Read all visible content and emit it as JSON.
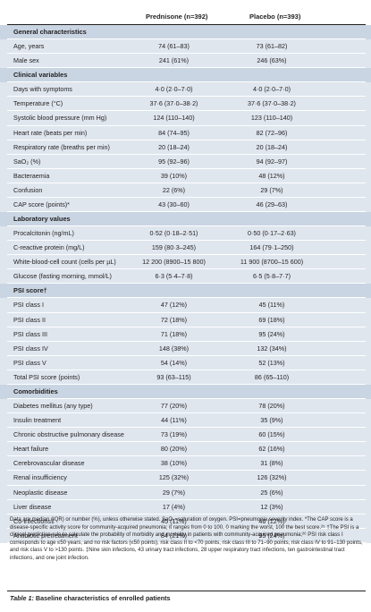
{
  "header": {
    "col1": "Prednisone (n=392)",
    "col2": "Placebo (n=393)"
  },
  "rows": [
    {
      "type": "section",
      "label": "General characteristics"
    },
    {
      "label": "Age, years",
      "v1": "74 (61–83)",
      "v2": "73 (61–82)"
    },
    {
      "label": "Male sex",
      "v1": "241 (61%)",
      "v2": "246 (63%)"
    },
    {
      "type": "section",
      "label": "Clinical variables"
    },
    {
      "label": "Days with symptoms",
      "v1": "4·0 (2·0–7·0)",
      "v2": "4·0 (2·0–7·0)"
    },
    {
      "label": "Temperature (°C)",
      "v1": "37·6 (37·0–38·2)",
      "v2": "37·6 (37·0–38·2)"
    },
    {
      "label": "Systolic blood pressure (mm Hg)",
      "v1": "124 (110–140)",
      "v2": "123 (110–140)"
    },
    {
      "label": "Heart rate (beats per min)",
      "v1": "84 (74–95)",
      "v2": "82 (72–96)"
    },
    {
      "label": "Respiratory rate (breaths per min)",
      "v1": "20 (18–24)",
      "v2": "20 (18–24)"
    },
    {
      "label": "SaO₂ (%)",
      "v1": "95 (92–96)",
      "v2": "94 (92–97)"
    },
    {
      "label": "Bacteraemia",
      "v1": "39 (10%)",
      "v2": "48 (12%)"
    },
    {
      "label": "Confusion",
      "v1": "22 (6%)",
      "v2": "29 (7%)"
    },
    {
      "label": "CAP score (points)*",
      "v1": "43 (30–60)",
      "v2": "46 (29–63)"
    },
    {
      "type": "section",
      "label": "Laboratory values"
    },
    {
      "label": "Procalcitonin (ng/mL)",
      "v1": "0·52 (0·18–2·51)",
      "v2": "0·50 (0·17–2·63)"
    },
    {
      "label": "C-reactive protein (mg/L)",
      "v1": "159 (80·3–245)",
      "v2": "164 (79·1–250)"
    },
    {
      "label": "White-blood-cell count (cells per µL)",
      "v1": "12 200 (8900–15 800)",
      "v2": "11 900 (8700–15 600)"
    },
    {
      "label": "Glucose (fasting morning, mmol/L)",
      "v1": "6·3 (5·4–7·8)",
      "v2": "6·5 (5·8–7·7)"
    },
    {
      "type": "section",
      "label": "PSI score†"
    },
    {
      "label": "PSI class I",
      "v1": "47 (12%)",
      "v2": "45 (11%)"
    },
    {
      "label": "PSI class II",
      "v1": "72 (18%)",
      "v2": "69 (18%)"
    },
    {
      "label": "PSI class III",
      "v1": "71 (18%)",
      "v2": "95 (24%)"
    },
    {
      "label": "PSI class IV",
      "v1": "148 (38%)",
      "v2": "132 (34%)"
    },
    {
      "label": "PSI class V",
      "v1": "54 (14%)",
      "v2": "52 (13%)"
    },
    {
      "label": "Total PSI score (points)",
      "v1": "93 (63–115)",
      "v2": "86 (65–110)"
    },
    {
      "type": "section",
      "label": "Comorbidities"
    },
    {
      "label": "Diabetes mellitus (any type)",
      "v1": "77 (20%)",
      "v2": "78 (20%)"
    },
    {
      "label": "Insulin treatment",
      "v1": "44 (11%)",
      "v2": "35 (9%)"
    },
    {
      "label": "Chronic obstructive pulmonary disease",
      "v1": "73 (19%)",
      "v2": "60 (15%)"
    },
    {
      "label": "Heart failure",
      "v1": "80 (20%)",
      "v2": "62 (16%)"
    },
    {
      "label": "Cerebrovascular disease",
      "v1": "38 (10%)",
      "v2": "31 (8%)"
    },
    {
      "label": "Renal insufficiency",
      "v1": "125 (32%)",
      "v2": "126 (32%)"
    },
    {
      "label": "Neoplastic disease",
      "v1": "29 (7%)",
      "v2": "25 (6%)"
    },
    {
      "label": "Liver disease",
      "v1": "17 (4%)",
      "v2": "12 (3%)"
    },
    {
      "label": "Co-infections‡",
      "v1": "45 (11%)",
      "v2": "46 (12%)"
    },
    {
      "label": "Antibiotic pretreatment",
      "v1": "84 (21%)",
      "v2": "95 (24%)"
    }
  ],
  "footnote": "Data are median (IQR) or number (%), unless otherwise stated. SaO₂=saturation of oxygen. PSI=pneumonia severity index. *The CAP score is a disease-specific activity score for community-acquired pneumonia; it ranges from 0 to 100, 0 marking the worst, 100 the best score.²⁵ †The PSI is a clinical prediction rule to calculate the probability of morbidity and mortality in patients with community-acquired pneumonia;²⁶ PSI risk class I corresponds to age ≤50 years, and no risk factors (≤50 points), risk class II to <70 points, risk class III to 71–90 points, risk class IV to 91–130 points, and risk class V to >130 points. ‡Nine skin infections, 43 urinary tract infections, 28 upper respiratory tract infections, ten gastrointestinal tract infections, and one joint infection.",
  "caption": {
    "label": "Table 1:",
    "text": "Baseline characteristics of enrolled patients"
  }
}
